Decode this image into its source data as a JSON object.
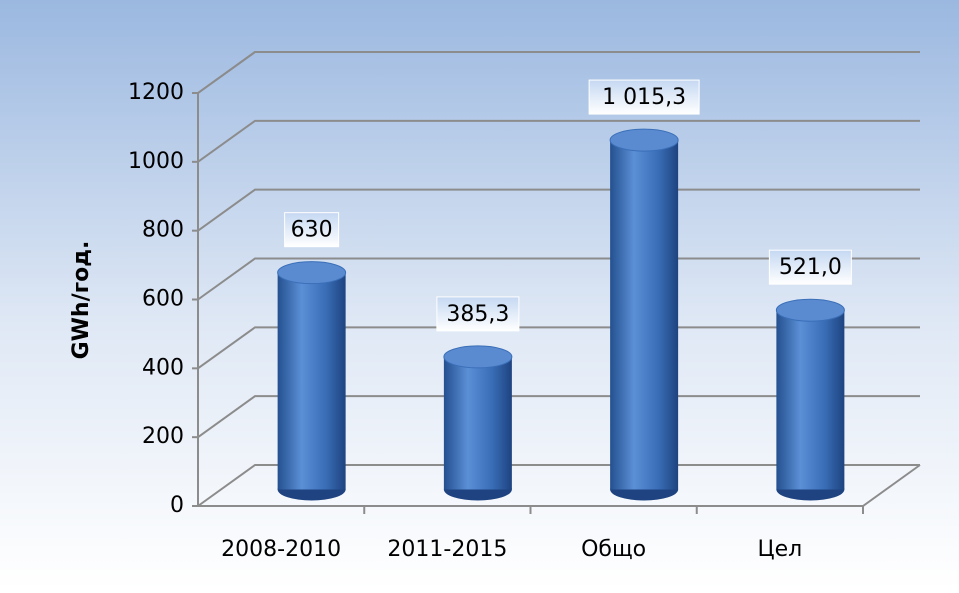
{
  "chart_data": {
    "type": "bar3d",
    "y_label": "GWh/год.",
    "categories": [
      "2008-2010",
      "2011-2015",
      "Общо",
      "Цел"
    ],
    "values": [
      630,
      385.3,
      1015.3,
      521.0
    ],
    "value_labels": [
      "630",
      "385,3",
      "1 015,3",
      "521,0"
    ],
    "color": "#3a6fb8",
    "ylim": [
      0,
      1200
    ],
    "yticks": [
      0,
      200,
      400,
      600,
      800,
      1000,
      1200
    ],
    "grid": true
  }
}
